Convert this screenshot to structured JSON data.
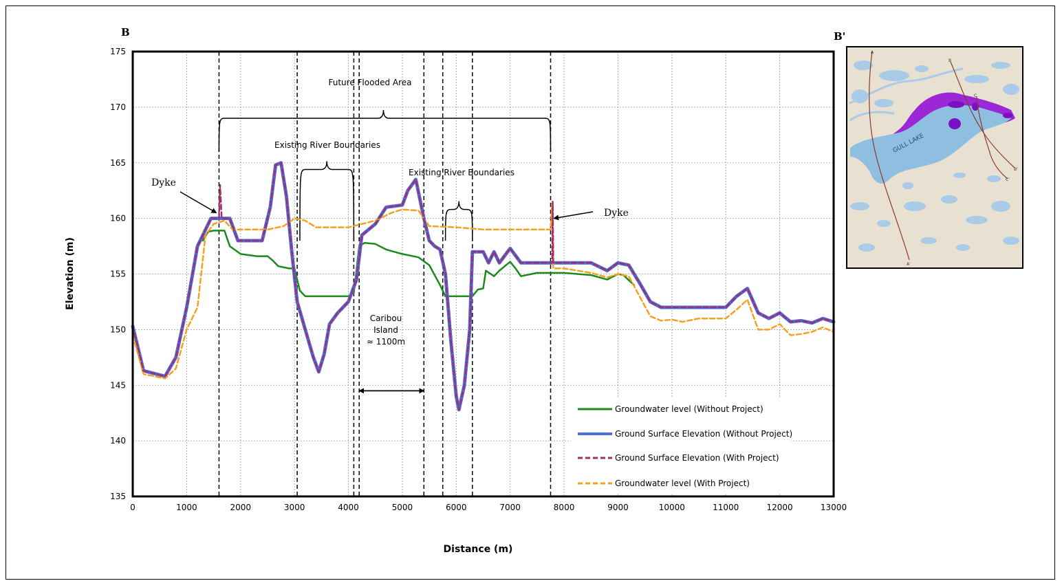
{
  "panel_label": "B",
  "map_label": "B'",
  "chart_data": {
    "type": "line",
    "title": "",
    "xlabel": "Distance  (m)",
    "ylabel": "Elevation (m)",
    "xlim": [
      0,
      13000
    ],
    "ylim": [
      135,
      175
    ],
    "x_ticks": [
      0,
      1000,
      2000,
      3000,
      4000,
      5000,
      6000,
      7000,
      8000,
      9000,
      10000,
      11000,
      12000,
      13000
    ],
    "y_ticks": [
      135,
      140,
      145,
      150,
      155,
      160,
      165,
      170,
      175
    ],
    "grid": true,
    "legend_position": "bottom-right",
    "series": [
      {
        "name": "Groundwater level (Without Project)",
        "color": "#1a8a1a",
        "dash": "solid",
        "points": [
          [
            1300,
            158
          ],
          [
            1400,
            158.8
          ],
          [
            1500,
            158.9
          ],
          [
            1700,
            158.9
          ],
          [
            1800,
            157.5
          ],
          [
            2000,
            156.8
          ],
          [
            2300,
            156.6
          ],
          [
            2500,
            156.6
          ],
          [
            2600,
            156.2
          ],
          [
            2700,
            155.7
          ],
          [
            2900,
            155.5
          ],
          [
            3000,
            155.5
          ],
          [
            3100,
            153.5
          ],
          [
            3200,
            153
          ],
          [
            3500,
            153
          ],
          [
            4000,
            153
          ],
          [
            4100,
            153.3
          ],
          [
            4200,
            157.5
          ],
          [
            4300,
            157.8
          ],
          [
            4500,
            157.7
          ],
          [
            4700,
            157.2
          ],
          [
            5000,
            156.8
          ],
          [
            5300,
            156.5
          ],
          [
            5500,
            155.8
          ],
          [
            5700,
            154
          ],
          [
            5800,
            153
          ],
          [
            6100,
            153
          ],
          [
            6300,
            153
          ],
          [
            6400,
            153.6
          ],
          [
            6500,
            153.7
          ],
          [
            6550,
            155.3
          ],
          [
            6700,
            154.8
          ],
          [
            6800,
            155.3
          ],
          [
            7000,
            156.1
          ],
          [
            7100,
            155.5
          ],
          [
            7200,
            154.8
          ],
          [
            7500,
            155.1
          ],
          [
            8000,
            155.1
          ],
          [
            8500,
            154.9
          ],
          [
            8800,
            154.5
          ],
          [
            9000,
            155
          ],
          [
            9100,
            154.9
          ],
          [
            9300,
            154
          ]
        ]
      },
      {
        "name": "Ground Surface Elevation (Without Project)",
        "color": "#4a6ee0",
        "dash": "solid",
        "points": [
          [
            0,
            150.3
          ],
          [
            200,
            146.3
          ],
          [
            600,
            145.8
          ],
          [
            800,
            147.5
          ],
          [
            1000,
            152
          ],
          [
            1200,
            157.5
          ],
          [
            1450,
            160
          ],
          [
            1800,
            160
          ],
          [
            1950,
            158
          ],
          [
            2400,
            158
          ],
          [
            2550,
            161
          ],
          [
            2650,
            164.8
          ],
          [
            2750,
            165
          ],
          [
            2850,
            162
          ],
          [
            2950,
            157
          ],
          [
            3050,
            152.5
          ],
          [
            3200,
            150
          ],
          [
            3350,
            147.5
          ],
          [
            3450,
            146.2
          ],
          [
            3550,
            147.8
          ],
          [
            3650,
            150.5
          ],
          [
            3800,
            151.5
          ],
          [
            4000,
            152.5
          ],
          [
            4150,
            154.5
          ],
          [
            4250,
            158.5
          ],
          [
            4500,
            159.5
          ],
          [
            4700,
            161
          ],
          [
            5000,
            161.2
          ],
          [
            5100,
            162.5
          ],
          [
            5250,
            163.5
          ],
          [
            5400,
            160
          ],
          [
            5500,
            158
          ],
          [
            5600,
            157.5
          ],
          [
            5700,
            157.2
          ],
          [
            5800,
            155
          ],
          [
            5900,
            149
          ],
          [
            6000,
            144
          ],
          [
            6050,
            142.8
          ],
          [
            6150,
            145
          ],
          [
            6250,
            150
          ],
          [
            6300,
            157
          ],
          [
            6500,
            157
          ],
          [
            6600,
            156
          ],
          [
            6700,
            157
          ],
          [
            6800,
            156
          ],
          [
            7000,
            157.3
          ],
          [
            7200,
            156
          ],
          [
            7500,
            156
          ],
          [
            8000,
            156
          ],
          [
            8500,
            156
          ],
          [
            8800,
            155.3
          ],
          [
            9000,
            156
          ],
          [
            9200,
            155.8
          ],
          [
            9400,
            154.2
          ],
          [
            9600,
            152.5
          ],
          [
            9800,
            152
          ],
          [
            10000,
            152
          ],
          [
            10500,
            152
          ],
          [
            11000,
            152
          ],
          [
            11200,
            153
          ],
          [
            11400,
            153.7
          ],
          [
            11600,
            151.5
          ],
          [
            11800,
            151
          ],
          [
            12000,
            151.5
          ],
          [
            12200,
            150.7
          ],
          [
            12400,
            150.8
          ],
          [
            12600,
            150.6
          ],
          [
            12800,
            151
          ],
          [
            13000,
            150.7
          ]
        ]
      },
      {
        "name": "Ground Surface Elevation (With Project)",
        "color": "#a0306a",
        "dash": "dashed",
        "points": [
          [
            0,
            150.3
          ],
          [
            200,
            146.3
          ],
          [
            600,
            145.8
          ],
          [
            800,
            147.5
          ],
          [
            1000,
            152
          ],
          [
            1200,
            157.5
          ],
          [
            1450,
            160
          ],
          [
            1600,
            160
          ],
          [
            1620,
            163
          ],
          [
            1650,
            160
          ],
          [
            1800,
            160
          ],
          [
            1950,
            158
          ],
          [
            2400,
            158
          ],
          [
            2550,
            161
          ],
          [
            2650,
            164.8
          ],
          [
            2750,
            165
          ],
          [
            2850,
            162
          ],
          [
            2950,
            157
          ],
          [
            3050,
            152.5
          ],
          [
            3200,
            150
          ],
          [
            3350,
            147.5
          ],
          [
            3450,
            146.2
          ],
          [
            3550,
            147.8
          ],
          [
            3650,
            150.5
          ],
          [
            3800,
            151.5
          ],
          [
            4000,
            152.5
          ],
          [
            4150,
            154.5
          ],
          [
            4250,
            158.5
          ],
          [
            4500,
            159.5
          ],
          [
            4700,
            161
          ],
          [
            5000,
            161.2
          ],
          [
            5100,
            162.5
          ],
          [
            5250,
            163.5
          ],
          [
            5400,
            160
          ],
          [
            5500,
            158
          ],
          [
            5600,
            157.5
          ],
          [
            5700,
            157.2
          ],
          [
            5800,
            155
          ],
          [
            5900,
            149
          ],
          [
            6000,
            144
          ],
          [
            6050,
            142.8
          ],
          [
            6150,
            145
          ],
          [
            6250,
            150
          ],
          [
            6300,
            157
          ],
          [
            6500,
            157
          ],
          [
            6600,
            156
          ],
          [
            6700,
            157
          ],
          [
            6800,
            156
          ],
          [
            7000,
            157.3
          ],
          [
            7200,
            156
          ],
          [
            7500,
            156
          ],
          [
            7780,
            156
          ],
          [
            7790,
            161.5
          ],
          [
            7800,
            156
          ],
          [
            8000,
            156
          ],
          [
            8500,
            156
          ],
          [
            8800,
            155.3
          ],
          [
            9000,
            156
          ],
          [
            9200,
            155.8
          ],
          [
            9400,
            154.2
          ],
          [
            9600,
            152.5
          ],
          [
            9800,
            152
          ],
          [
            10000,
            152
          ],
          [
            10500,
            152
          ],
          [
            11000,
            152
          ],
          [
            11200,
            153
          ],
          [
            11400,
            153.7
          ],
          [
            11600,
            151.5
          ],
          [
            11800,
            151
          ],
          [
            12000,
            151.5
          ],
          [
            12200,
            150.7
          ],
          [
            12400,
            150.8
          ],
          [
            12600,
            150.6
          ],
          [
            12800,
            151
          ],
          [
            13000,
            150.7
          ]
        ]
      },
      {
        "name": "Groundwater level (With Project)",
        "color": "#f5a020",
        "dash": "dashed",
        "points": [
          [
            0,
            149.5
          ],
          [
            200,
            146
          ],
          [
            600,
            145.6
          ],
          [
            800,
            146.5
          ],
          [
            1000,
            150
          ],
          [
            1200,
            152
          ],
          [
            1350,
            158.5
          ],
          [
            1500,
            159.5
          ],
          [
            1700,
            159.8
          ],
          [
            1850,
            159
          ],
          [
            2500,
            159
          ],
          [
            2800,
            159.3
          ],
          [
            3000,
            160
          ],
          [
            3200,
            159.8
          ],
          [
            3400,
            159.2
          ],
          [
            4000,
            159.2
          ],
          [
            4500,
            159.8
          ],
          [
            4800,
            160.5
          ],
          [
            5000,
            160.8
          ],
          [
            5300,
            160.7
          ],
          [
            5500,
            159.3
          ],
          [
            6000,
            159.2
          ],
          [
            6500,
            159
          ],
          [
            7000,
            159
          ],
          [
            7750,
            159
          ],
          [
            7780,
            161.4
          ],
          [
            7800,
            155.5
          ],
          [
            8000,
            155.5
          ],
          [
            8500,
            155.1
          ],
          [
            8800,
            154.7
          ],
          [
            9000,
            155
          ],
          [
            9200,
            154.8
          ],
          [
            9400,
            153
          ],
          [
            9600,
            151.2
          ],
          [
            9800,
            150.8
          ],
          [
            10000,
            150.9
          ],
          [
            10200,
            150.7
          ],
          [
            10500,
            151
          ],
          [
            11000,
            151
          ],
          [
            11200,
            151.8
          ],
          [
            11400,
            152.7
          ],
          [
            11600,
            150
          ],
          [
            11800,
            150
          ],
          [
            12000,
            150.5
          ],
          [
            12200,
            149.5
          ],
          [
            12400,
            149.6
          ],
          [
            12600,
            149.8
          ],
          [
            12800,
            150.2
          ],
          [
            13000,
            149.8
          ]
        ]
      }
    ],
    "vertical_dashed_lines": [
      1600,
      3050,
      4100,
      4200,
      5400,
      5750,
      6300,
      7750
    ],
    "annotations": {
      "future_flooded_area": "Future Flooded Area",
      "existing_river_1": "Existing River Boundaries",
      "existing_river_2": "Existing River Boundaries",
      "dyke_left": "Dyke",
      "dyke_right": "Dyke",
      "caribou_line1": "Caribou",
      "caribou_line2": "Island",
      "caribou_line3": "≈ 1100m"
    }
  },
  "map": {
    "lake_label": "GULL LAKE",
    "colors": {
      "land": "#e8e0d0",
      "water": "#a9cbe8",
      "lake": "#8fbfe0",
      "flood": "#9b27d6"
    },
    "section_labels": {
      "a": "A",
      "a_prime": "A'",
      "b": "B",
      "b_prime": "B'",
      "c": "C",
      "c_prime": "C'"
    }
  }
}
